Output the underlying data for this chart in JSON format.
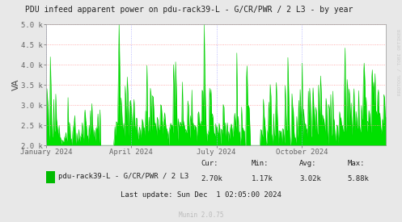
{
  "title": "PDU infeed apparent power on pdu-rack39-L - G/CR/PWR / 2 L3 - by year",
  "ylabel": "VA",
  "ylim": [
    2000,
    5000
  ],
  "yticks": [
    2000,
    2500,
    3000,
    3500,
    4000,
    4500,
    5000
  ],
  "ytick_labels": [
    "2.0 k",
    "2.5 k",
    "3.0 k",
    "3.5 k",
    "4.0 k",
    "4.5 k",
    "5.0 k"
  ],
  "xtick_labels": [
    "January 2024",
    "April 2024",
    "July 2024",
    "October 2024"
  ],
  "legend_label": "pdu-rack39-L - G/CR/PWR / 2 L3",
  "cur_label": "Cur:",
  "min_label": "Min:",
  "avg_label": "Avg:",
  "max_label": "Max:",
  "cur": "2.70k",
  "min": "1.17k",
  "avg": "3.02k",
  "max": "5.88k",
  "last_update": "Last update: Sun Dec  1 02:05:00 2024",
  "munin_version": "Munin 2.0.75",
  "right_label": "RRDTOOL / TOBI OETIKER",
  "bg_color": "#e8e8e8",
  "plot_bg_color": "#ffffff",
  "grid_color_red": "#ffaaaa",
  "grid_color_blue": "#aaaaff",
  "fill_color": "#00e000",
  "line_color": "#00cc00",
  "title_color": "#222222",
  "legend_marker_color": "#00bb00",
  "watermark_color": "#bbbbbb",
  "num_points": 500
}
